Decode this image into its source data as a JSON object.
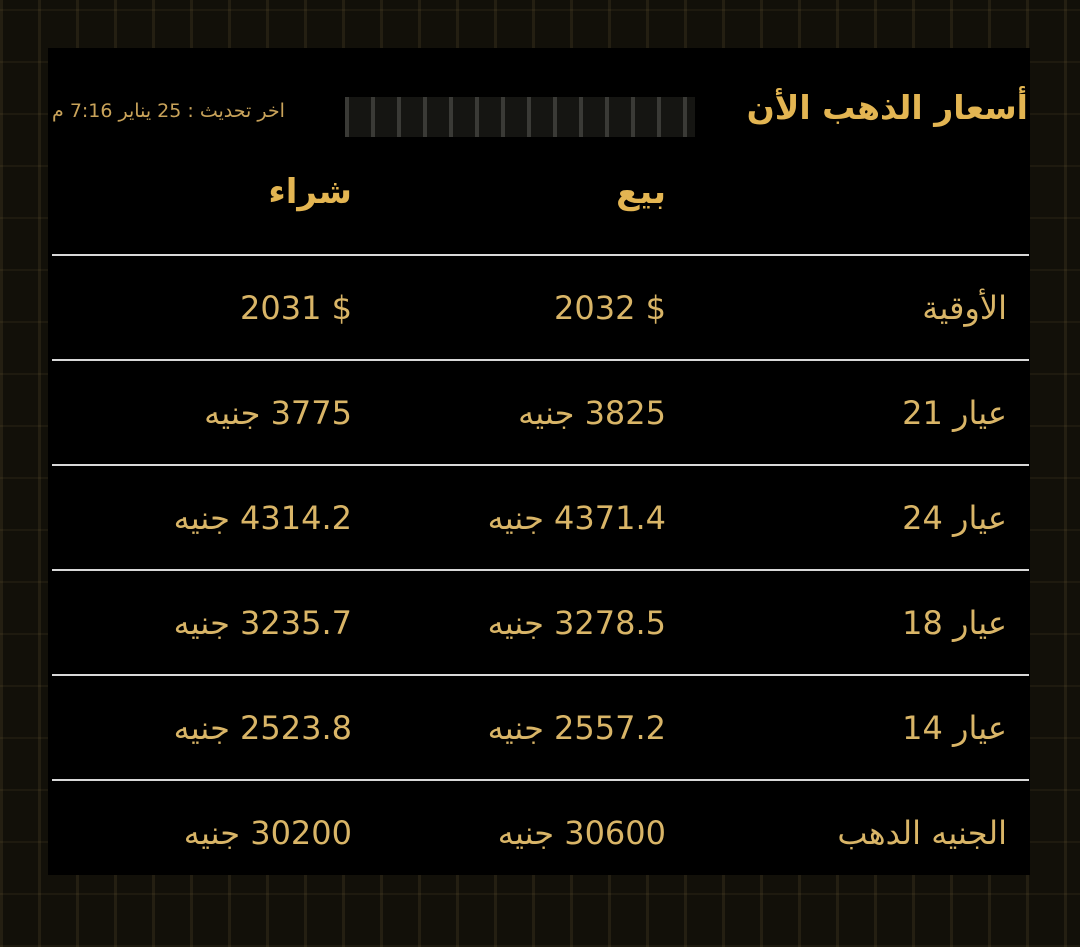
{
  "header": {
    "title": "أسعار الذهب الأن",
    "updated": "اخر تحديث : 25 يناير 7:16 م"
  },
  "columns": {
    "sell": "بيع",
    "buy": "شراء"
  },
  "rows": [
    {
      "label": "الأوقية",
      "sell": "$ 2032",
      "buy": "$ 2031"
    },
    {
      "label": "عيار 21",
      "sell": "3825 جنيه",
      "buy": "3775 جنيه"
    },
    {
      "label": "عيار 24",
      "sell": "4371.4 جنيه",
      "buy": "4314.2 جنيه"
    },
    {
      "label": "عيار 18",
      "sell": "3278.5 جنيه",
      "buy": "3235.7 جنيه"
    },
    {
      "label": "عيار 14",
      "sell": "2557.2 جنيه",
      "buy": "2523.8 جنيه"
    },
    {
      "label": "الجنيه الدهب",
      "sell": "30600 جنيه",
      "buy": "30200 جنيه"
    }
  ],
  "colors": {
    "gold": "#e3b552",
    "background": "#000000"
  }
}
